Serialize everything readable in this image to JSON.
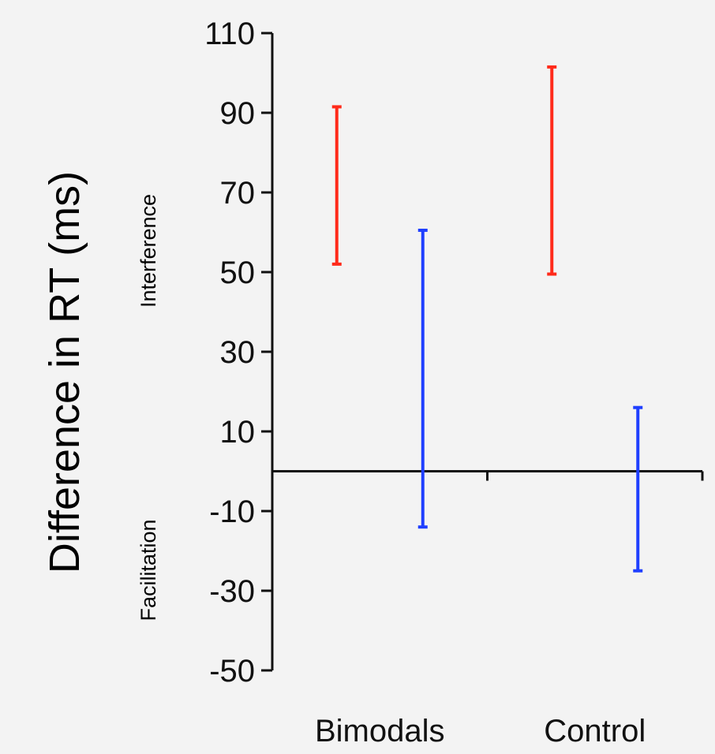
{
  "chart_data": {
    "type": "errorbar",
    "ylabel": "Difference in RT (ms)",
    "ylim": [
      -50,
      110
    ],
    "yticks": [
      110,
      90,
      70,
      50,
      30,
      10,
      -10,
      -30,
      -50
    ],
    "categories": [
      "Bimodals",
      "Control"
    ],
    "annotations": {
      "upper": "Interference",
      "lower": "Facilitation"
    },
    "series": [
      {
        "color": "#ff2a1a",
        "intervals": [
          [
            52,
            91.5
          ],
          [
            49.5,
            101.5
          ]
        ]
      },
      {
        "color": "#1f3fff",
        "intervals": [
          [
            -14,
            60.5
          ],
          [
            -25,
            16
          ]
        ]
      }
    ],
    "grid": false
  }
}
